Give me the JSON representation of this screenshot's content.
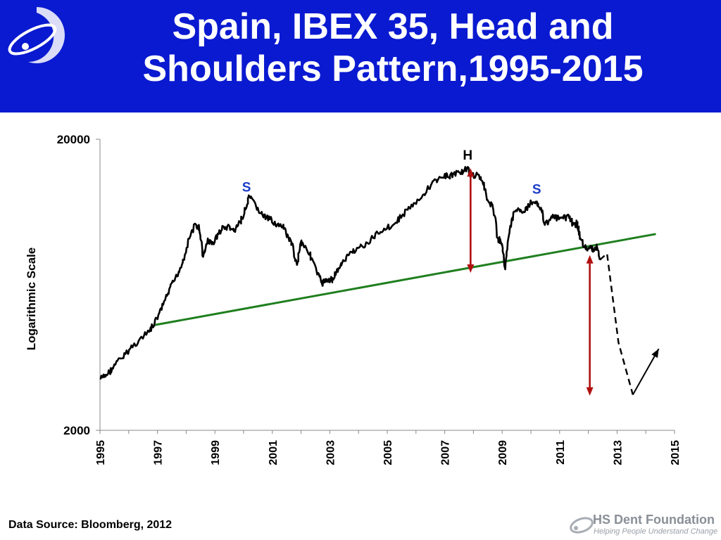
{
  "header": {
    "title_line1": "Spain, IBEX 35, Head and",
    "title_line2": "Shoulders Pattern,1995-2015",
    "background": "#0a1ad0"
  },
  "footer": {
    "source": "Data Source: Bloomberg, 2012",
    "brand": "HS Dent Foundation",
    "tagline": "Helping People Understand Change"
  },
  "chart_data": {
    "type": "line",
    "ylabel": "Logarithmic Scale",
    "xlabel": "",
    "y_scale": "log",
    "ylim": [
      2000,
      20000
    ],
    "y_ticks": [
      "20000",
      "2000"
    ],
    "xlim": [
      1995,
      2015
    ],
    "x_ticks": [
      "1995",
      "1997",
      "1999",
      "2001",
      "2003",
      "2005",
      "2007",
      "2009",
      "2011",
      "2013",
      "2015"
    ],
    "grid": false,
    "series": [
      {
        "color": "#000000",
        "x": [
          1995.0,
          1995.2,
          1995.4,
          1995.6,
          1995.9,
          1996.1,
          1996.4,
          1996.7,
          1996.9,
          1997.1,
          1997.3,
          1997.5,
          1997.7,
          1997.9,
          1998.1,
          1998.3,
          1998.45,
          1998.6,
          1998.75,
          1998.9,
          1999.1,
          1999.3,
          1999.5,
          1999.7,
          1999.9,
          2000.1,
          2000.2,
          2000.4,
          2000.6,
          2000.8,
          2001.0,
          2001.2,
          2001.4,
          2001.6,
          2001.7,
          2001.85,
          2002.0,
          2002.2,
          2002.4,
          2002.6,
          2002.75,
          2002.9,
          2003.1,
          2003.3,
          2003.5,
          2003.7,
          2004.0,
          2004.3,
          2004.6,
          2004.9,
          2005.2,
          2005.5,
          2005.8,
          2006.1,
          2006.4,
          2006.7,
          2007.0,
          2007.2,
          2007.4,
          2007.6,
          2007.8,
          2007.9,
          2008.1,
          2008.3,
          2008.5,
          2008.7,
          2008.85,
          2009.0,
          2009.1,
          2009.25,
          2009.4,
          2009.6,
          2009.8,
          2010.0,
          2010.2,
          2010.35,
          2010.5,
          2010.7,
          2010.9,
          2011.1,
          2011.3,
          2011.5,
          2011.6,
          2011.7,
          2011.85,
          2012.0,
          2012.15,
          2012.3,
          2012.4
        ],
        "y": [
          3000,
          3080,
          3230,
          3430,
          3650,
          3870,
          4100,
          4350,
          4650,
          5100,
          5700,
          6300,
          6900,
          7700,
          9100,
          10100,
          9950,
          7850,
          9000,
          8700,
          9400,
          9950,
          9950,
          9650,
          10500,
          11700,
          12700,
          11900,
          11100,
          10700,
          10500,
          10100,
          9900,
          9000,
          8600,
          7400,
          8900,
          8400,
          7700,
          6800,
          6400,
          6600,
          6600,
          7200,
          7600,
          8100,
          8500,
          8700,
          9400,
          9900,
          10100,
          10900,
          11700,
          12200,
          13500,
          14500,
          14900,
          15000,
          15300,
          15500,
          15800,
          15200,
          15000,
          14600,
          12300,
          11600,
          9100,
          8800,
          7300,
          9600,
          11000,
          11600,
          11300,
          12100,
          12200,
          11600,
          10100,
          10900,
          10700,
          10600,
          10900,
          10100,
          10300,
          9400,
          8500,
          8400,
          8400,
          8500,
          7700
        ]
      }
    ],
    "annotations": [
      {
        "label": "S",
        "x": 2000.1,
        "y": 13200,
        "color": "#1a3cc8"
      },
      {
        "label": "H",
        "x": 2007.8,
        "y": 17000,
        "color": "#000000"
      },
      {
        "label": "S",
        "x": 2010.2,
        "y": 13000,
        "color": "#1a3cc8"
      }
    ],
    "neckline": {
      "color": "#1f7f1f",
      "x": [
        1996.9,
        2014.35
      ],
      "y": [
        4600,
        9450
      ]
    },
    "projection": {
      "x": [
        2012.4,
        2012.65,
        2013.05,
        2013.55
      ],
      "y": [
        7700,
        8100,
        4000,
        2650
      ]
    },
    "rebound_arrow": {
      "x": [
        2013.55,
        2014.45
      ],
      "y": [
        2650,
        3810
      ]
    },
    "targets": [
      {
        "color": "#b01010",
        "x": 2007.9,
        "y": [
          6950,
          15900
        ]
      },
      {
        "color": "#b01010",
        "x": 2012.05,
        "y": [
          2630,
          8000
        ]
      }
    ]
  }
}
